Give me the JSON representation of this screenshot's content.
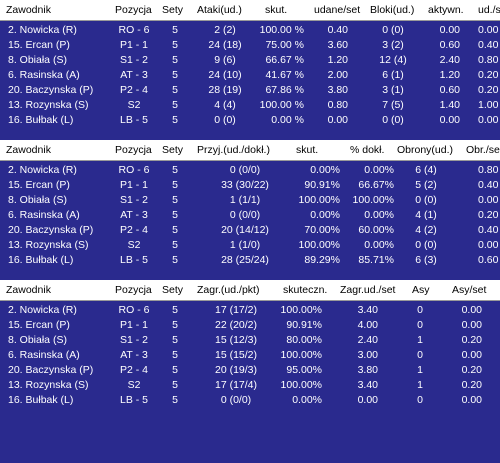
{
  "tables": [
    {
      "columns": [
        "Zawodnik",
        "Pozycja",
        "Sety",
        "Ataki(ud.)",
        "skut.",
        "udane/set",
        "Bloki(ud.)",
        "aktywn.",
        "ud./set"
      ],
      "rows": [
        [
          "2. Nowicka (R)",
          "RO - 6",
          "5",
          "2 (2)",
          "100.00 %",
          "0.40",
          "0 (0)",
          "0.00",
          "0.00"
        ],
        [
          "15. Ercan (P)",
          "P1 - 1",
          "5",
          "24 (18)",
          "75.00 %",
          "3.60",
          "3 (2)",
          "0.60",
          "0.40"
        ],
        [
          "8. Obiała (S)",
          "S1 - 2",
          "5",
          "9 (6)",
          "66.67 %",
          "1.20",
          "12 (4)",
          "2.40",
          "0.80"
        ],
        [
          "6. Rasinska (A)",
          "AT - 3",
          "5",
          "24 (10)",
          "41.67 %",
          "2.00",
          "6 (1)",
          "1.20",
          "0.20"
        ],
        [
          "20. Baczynska (P)",
          "P2 - 4",
          "5",
          "28 (19)",
          "67.86 %",
          "3.80",
          "3 (1)",
          "0.60",
          "0.20"
        ],
        [
          "13. Rozynska (S)",
          "S2",
          "5",
          "4 (4)",
          "100.00 %",
          "0.80",
          "7 (5)",
          "1.40",
          "1.00"
        ],
        [
          "16. Bułbak (L)",
          "LB - 5",
          "5",
          "0 (0)",
          "0.00 %",
          "0.00",
          "0 (0)",
          "0.00",
          "0.00"
        ]
      ]
    },
    {
      "columns": [
        "Zawodnik",
        "Pozycja",
        "Sety",
        "Przyj.(ud./dokł.)",
        "skut.",
        "% dokł.",
        "Obrony(ud.)",
        "Obr./set"
      ],
      "rows": [
        [
          "2. Nowicka (R)",
          "RO - 6",
          "5",
          "0 (0/0)",
          "0.00%",
          "0.00%",
          "6 (4)",
          "0.80"
        ],
        [
          "15. Ercan (P)",
          "P1 - 1",
          "5",
          "33 (30/22)",
          "90.91%",
          "66.67%",
          "5 (2)",
          "0.40"
        ],
        [
          "8. Obiała (S)",
          "S1 - 2",
          "5",
          "1 (1/1)",
          "100.00%",
          "100.00%",
          "0 (0)",
          "0.00"
        ],
        [
          "6. Rasinska (A)",
          "AT - 3",
          "5",
          "0 (0/0)",
          "0.00%",
          "0.00%",
          "4 (1)",
          "0.20"
        ],
        [
          "20. Baczynska (P)",
          "P2 - 4",
          "5",
          "20 (14/12)",
          "70.00%",
          "60.00%",
          "4 (2)",
          "0.40"
        ],
        [
          "13. Rozynska (S)",
          "S2",
          "5",
          "1 (1/0)",
          "100.00%",
          "0.00%",
          "0 (0)",
          "0.00"
        ],
        [
          "16. Bułbak (L)",
          "LB - 5",
          "5",
          "28 (25/24)",
          "89.29%",
          "85.71%",
          "6 (3)",
          "0.60"
        ]
      ]
    },
    {
      "columns": [
        "Zawodnik",
        "Pozycja",
        "Sety",
        "Zagr.(ud./pkt)",
        "skuteczn.",
        "Zagr.ud./set",
        "Asy",
        "Asy/set"
      ],
      "rows": [
        [
          "2. Nowicka (R)",
          "RO - 6",
          "5",
          "17 (17/2)",
          "100.00%",
          "3.40",
          "0",
          "0.00"
        ],
        [
          "15. Ercan (P)",
          "P1 - 1",
          "5",
          "22 (20/2)",
          "90.91%",
          "4.00",
          "0",
          "0.00"
        ],
        [
          "8. Obiała (S)",
          "S1 - 2",
          "5",
          "15 (12/3)",
          "80.00%",
          "2.40",
          "1",
          "0.20"
        ],
        [
          "6. Rasinska (A)",
          "AT - 3",
          "5",
          "15 (15/2)",
          "100.00%",
          "3.00",
          "0",
          "0.00"
        ],
        [
          "20. Baczynska (P)",
          "P2 - 4",
          "5",
          "20 (19/3)",
          "95.00%",
          "3.80",
          "1",
          "0.20"
        ],
        [
          "13. Rozynska (S)",
          "S2",
          "5",
          "17 (17/4)",
          "100.00%",
          "3.40",
          "1",
          "0.20"
        ],
        [
          "16. Bułbak (L)",
          "LB - 5",
          "5",
          "0 (0/0)",
          "0.00%",
          "0.00",
          "0",
          "0.00"
        ]
      ]
    }
  ]
}
